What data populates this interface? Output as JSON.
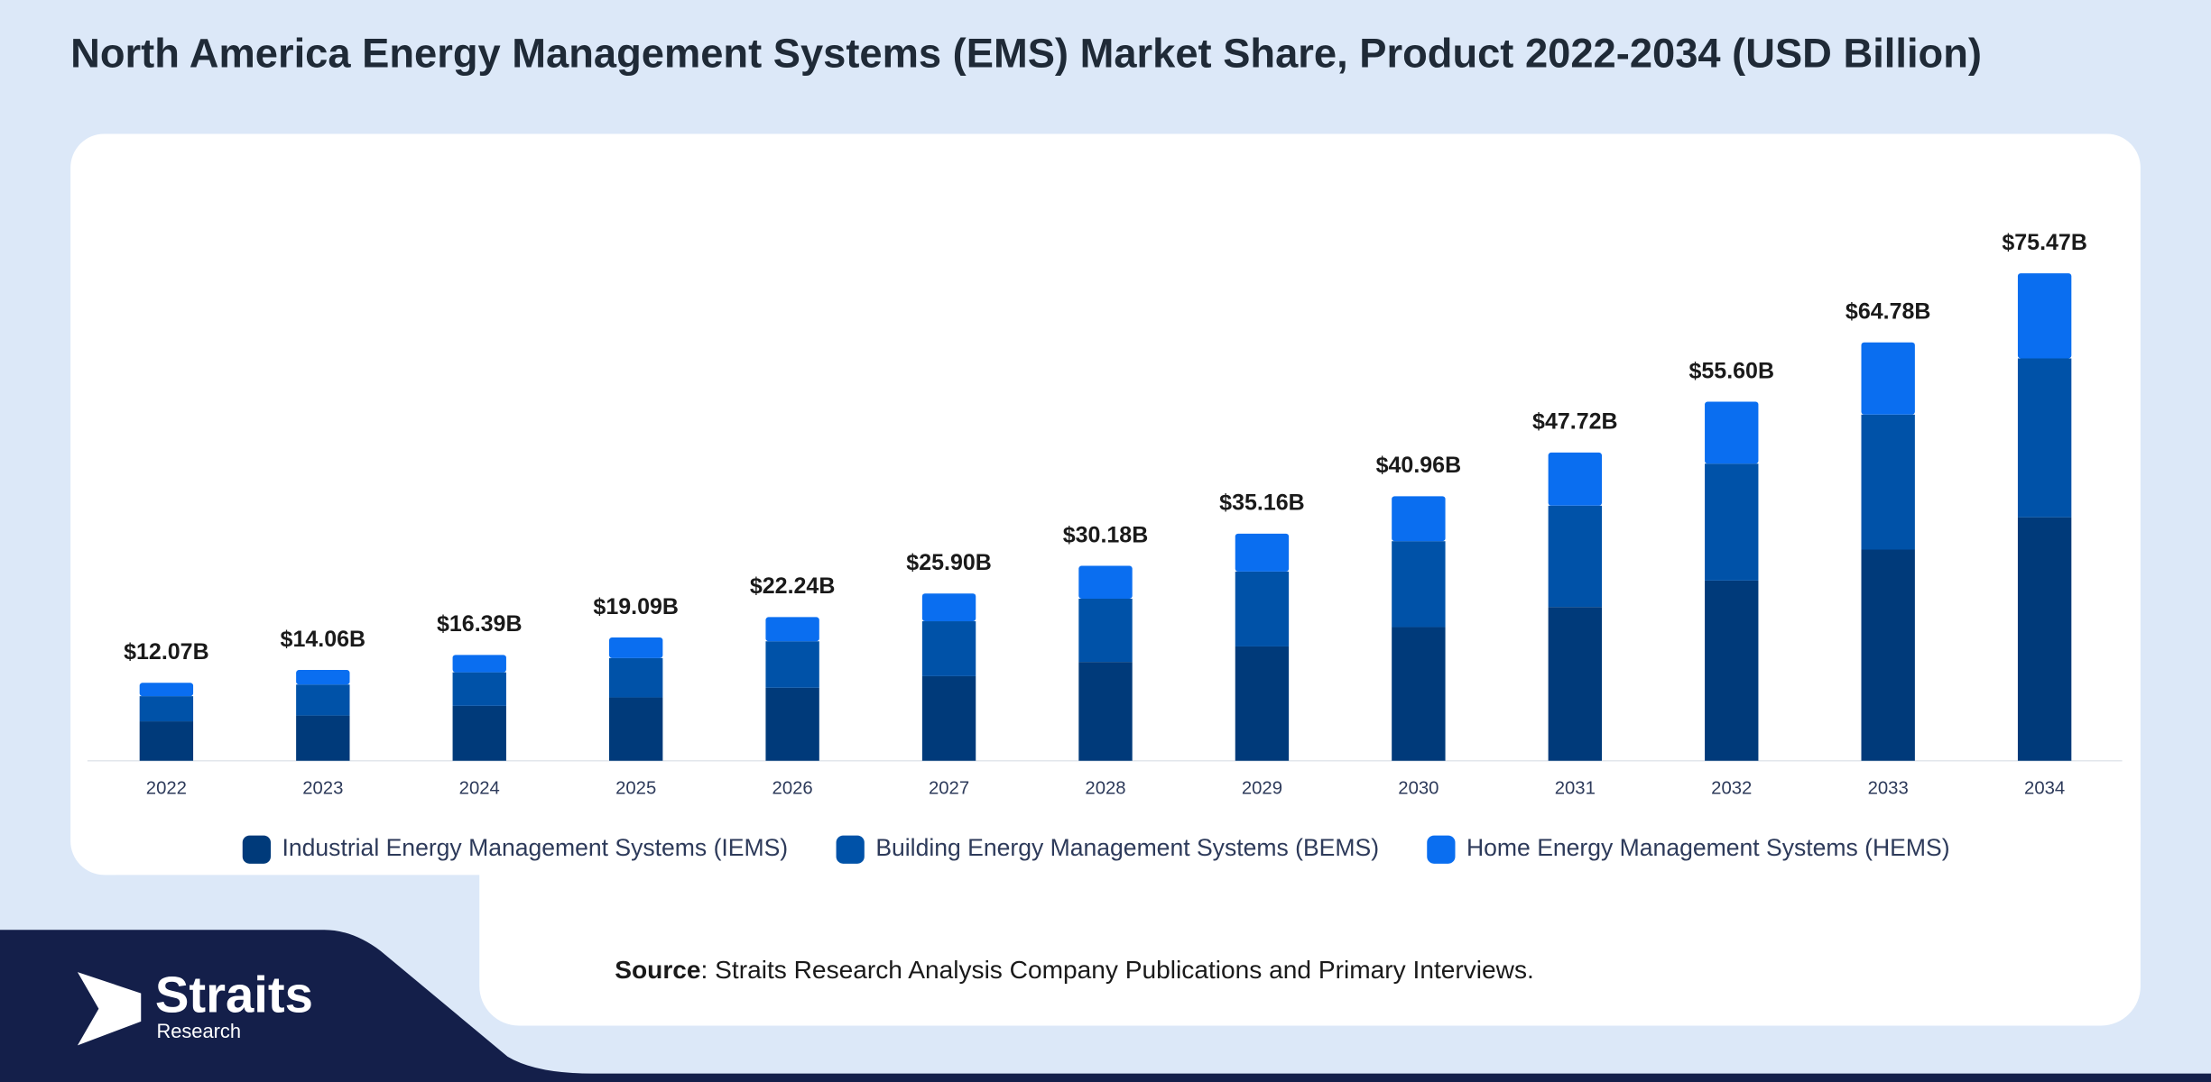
{
  "chart_data": {
    "type": "stacked-bar",
    "title": "North America Energy Management Systems (EMS) Market Share, Product 2022-2034 (USD Billion)",
    "categories": [
      "2022",
      "2023",
      "2024",
      "2025",
      "2026",
      "2027",
      "2028",
      "2029",
      "2030",
      "2031",
      "2032",
      "2033",
      "2034"
    ],
    "series": [
      {
        "name": "Industrial Energy Management Systems (IEMS)",
        "color": "#003a7a",
        "values": [
          6.1,
          7.0,
          8.5,
          9.8,
          11.3,
          13.1,
          15.3,
          17.7,
          20.7,
          23.8,
          27.9,
          32.7,
          37.7
        ]
      },
      {
        "name": "Building Energy Management Systems (BEMS)",
        "color": "#0052a8",
        "values": [
          3.9,
          4.8,
          5.2,
          6.1,
          7.2,
          8.5,
          9.8,
          11.6,
          13.3,
          15.7,
          18.1,
          20.9,
          24.6
        ]
      },
      {
        "name": "Home Energy Management Systems (HEMS)",
        "color": "#0a6ef0",
        "values": [
          2.07,
          2.26,
          2.69,
          3.19,
          3.74,
          4.3,
          5.08,
          5.86,
          6.96,
          8.22,
          9.6,
          11.18,
          13.17
        ]
      }
    ],
    "totals": {
      "values": [
        12.07,
        14.06,
        16.39,
        19.09,
        22.24,
        25.9,
        30.18,
        35.16,
        40.96,
        47.72,
        55.6,
        64.78,
        75.47
      ],
      "value_labels": [
        "$12.07B",
        "$14.06B",
        "$16.39B",
        "$19.09B",
        "$22.24B",
        "$25.90B",
        "$30.18B",
        "$35.16B",
        "$40.96B",
        "$47.72B",
        "$55.60B",
        "$64.78B",
        "$75.47B"
      ]
    }
  },
  "source": {
    "label": "Source",
    "text": ": Straits Research Analysis Company Publications and Primary Interviews."
  },
  "logo": {
    "name": "Straits",
    "sub": "Research"
  }
}
